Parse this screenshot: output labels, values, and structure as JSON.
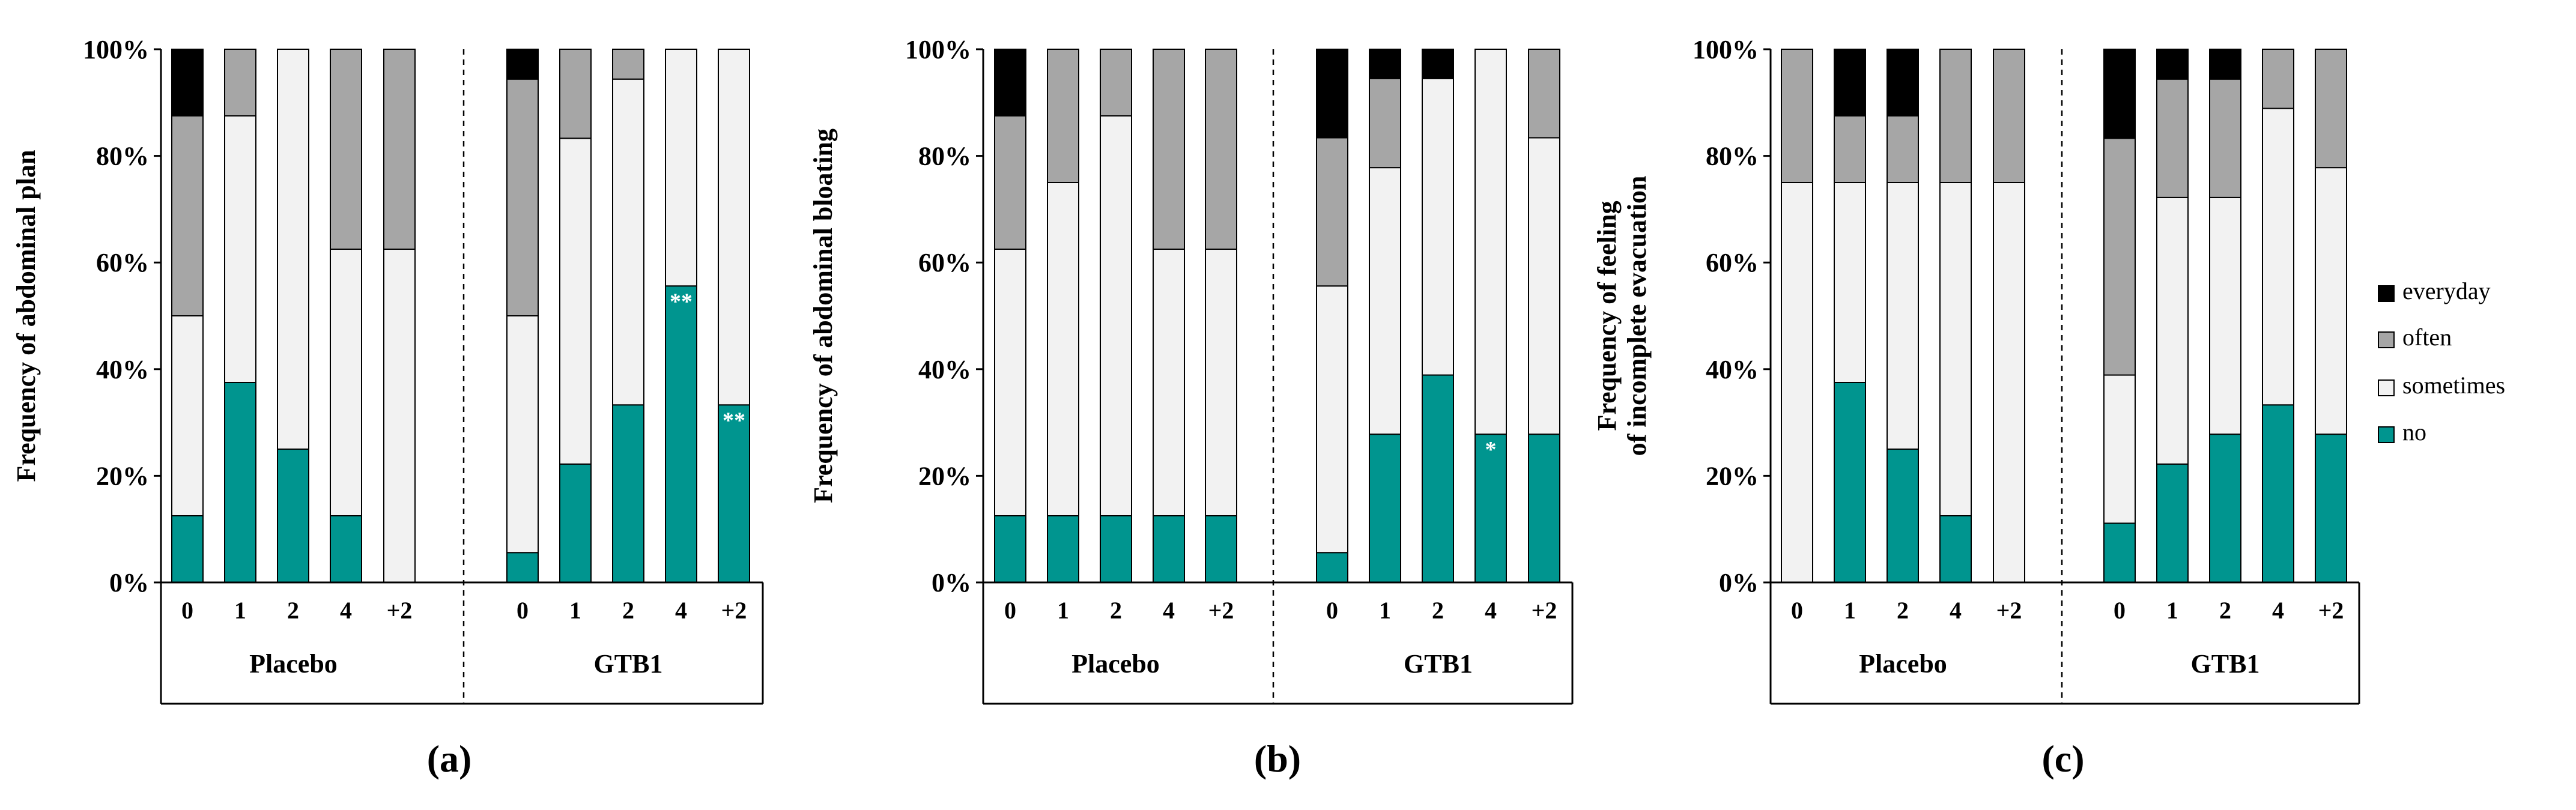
{
  "chart_data": [
    {
      "type": "bar",
      "stacked": true,
      "panel": "(a)",
      "ylabel": "Frequency of abdominal plan",
      "ylim": [
        0,
        100
      ],
      "yticks": [
        "0%",
        "20%",
        "40%",
        "60%",
        "80%",
        "100%"
      ],
      "categories": [
        "0",
        "1",
        "2",
        "4",
        "+2",
        "0",
        "1",
        "2",
        "4",
        "+2"
      ],
      "groups": [
        {
          "name": "Placebo",
          "count": 5
        },
        {
          "name": "GTB1",
          "count": 5
        }
      ],
      "series": [
        {
          "name": "no",
          "values": [
            12.5,
            37.5,
            25.0,
            12.5,
            0.0,
            5.6,
            22.2,
            33.3,
            55.6,
            33.3
          ]
        },
        {
          "name": "sometimes",
          "values": [
            37.5,
            50.0,
            75.0,
            50.0,
            62.5,
            44.4,
            61.1,
            61.1,
            44.4,
            66.7
          ]
        },
        {
          "name": "often",
          "values": [
            37.5,
            12.5,
            0.0,
            37.5,
            37.5,
            44.4,
            16.7,
            5.6,
            0.0,
            0.0
          ]
        },
        {
          "name": "everyday",
          "values": [
            12.5,
            0.0,
            0.0,
            0.0,
            0.0,
            5.6,
            0.0,
            0.0,
            0.0,
            0.0
          ]
        }
      ],
      "annotations": [
        {
          "category_index": 8,
          "text": "**"
        },
        {
          "category_index": 9,
          "text": "**"
        }
      ]
    },
    {
      "type": "bar",
      "stacked": true,
      "panel": "(b)",
      "ylabel": "Frequency of abdominal bloating",
      "ylim": [
        0,
        100
      ],
      "yticks": [
        "0%",
        "20%",
        "40%",
        "60%",
        "80%",
        "100%"
      ],
      "categories": [
        "0",
        "1",
        "2",
        "4",
        "+2",
        "0",
        "1",
        "2",
        "4",
        "+2"
      ],
      "groups": [
        {
          "name": "Placebo",
          "count": 5
        },
        {
          "name": "GTB1",
          "count": 5
        }
      ],
      "series": [
        {
          "name": "no",
          "values": [
            12.5,
            12.5,
            12.5,
            12.5,
            12.5,
            5.6,
            27.8,
            38.9,
            27.8,
            27.8
          ]
        },
        {
          "name": "sometimes",
          "values": [
            50.0,
            62.5,
            75.0,
            50.0,
            50.0,
            50.0,
            50.0,
            55.6,
            72.2,
            55.6
          ]
        },
        {
          "name": "often",
          "values": [
            25.0,
            25.0,
            12.5,
            37.5,
            37.5,
            27.8,
            16.7,
            0.0,
            0.0,
            16.6
          ]
        },
        {
          "name": "everyday",
          "values": [
            12.5,
            0.0,
            0.0,
            0.0,
            0.0,
            16.6,
            5.5,
            5.5,
            0.0,
            0.0
          ]
        }
      ],
      "annotations": [
        {
          "category_index": 8,
          "text": "*"
        }
      ]
    },
    {
      "type": "bar",
      "stacked": true,
      "panel": "(c)",
      "ylabel": "Frequency of feeling of incomplete evacuation",
      "ylabel_lines": [
        "Frequency of feeling",
        "of incomplete evacuation"
      ],
      "ylim": [
        0,
        100
      ],
      "yticks": [
        "0%",
        "20%",
        "40%",
        "60%",
        "80%",
        "100%"
      ],
      "categories": [
        "0",
        "1",
        "2",
        "4",
        "+2",
        "0",
        "1",
        "2",
        "4",
        "+2"
      ],
      "groups": [
        {
          "name": "Placebo",
          "count": 5
        },
        {
          "name": "GTB1",
          "count": 5
        }
      ],
      "series": [
        {
          "name": "no",
          "values": [
            0.0,
            37.5,
            25.0,
            12.5,
            0.0,
            11.1,
            22.2,
            27.8,
            33.3,
            27.8
          ]
        },
        {
          "name": "sometimes",
          "values": [
            75.0,
            37.5,
            50.0,
            62.5,
            75.0,
            27.8,
            50.0,
            44.4,
            55.6,
            50.0
          ]
        },
        {
          "name": "often",
          "values": [
            25.0,
            12.5,
            12.5,
            25.0,
            25.0,
            44.4,
            22.2,
            22.2,
            11.1,
            22.2
          ]
        },
        {
          "name": "everyday",
          "values": [
            0.0,
            12.5,
            12.5,
            0.0,
            0.0,
            16.7,
            5.6,
            5.6,
            0.0,
            0.0
          ]
        }
      ],
      "annotations": []
    }
  ],
  "legend": [
    {
      "name": "everyday",
      "color": "#000000"
    },
    {
      "name": "often",
      "color": "#a6a6a6"
    },
    {
      "name": "sometimes",
      "color": "#f2f2f2"
    },
    {
      "name": "no",
      "color": "#00958f"
    }
  ],
  "colors": {
    "no": "#00958f",
    "sometimes": "#f2f2f2",
    "often": "#a6a6a6",
    "everyday": "#000000",
    "annotation": "#ffffff"
  }
}
